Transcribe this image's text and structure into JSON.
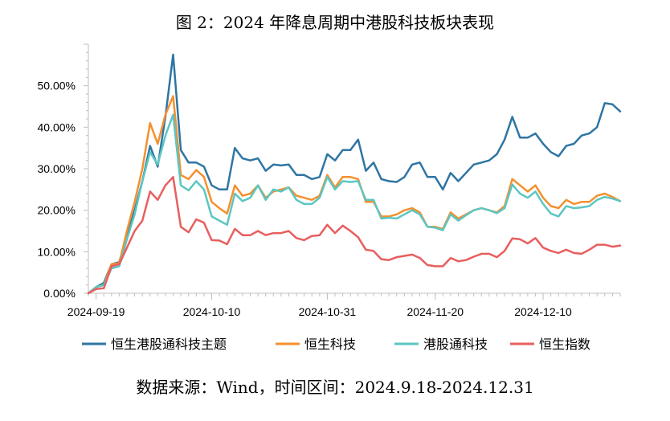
{
  "title": "图 2：2024 年降息周期中港股科技板块表现",
  "source": "数据来源：Wind，时间区间：2024.9.18-2024.12.31",
  "chart_data": {
    "type": "line",
    "x_tick_labels": [
      "2024-09-19",
      "2024-10-10",
      "2024-10-31",
      "2024-11-20",
      "2024-12-10"
    ],
    "x_tick_indices": [
      1,
      16,
      31,
      45,
      59
    ],
    "ylim": [
      0,
      0.6
    ],
    "y_ticks": [
      0,
      0.1,
      0.2,
      0.3,
      0.4,
      0.5
    ],
    "y_tick_labels": [
      "0.00%",
      "10.00%",
      "20.00%",
      "30.00%",
      "40.00%",
      "50.00%"
    ],
    "grid": false,
    "legend_position": "bottom",
    "series": [
      {
        "name": "恒生港股通科技主题",
        "color": "#2f75a3",
        "values": [
          0.0,
          0.015,
          0.025,
          0.07,
          0.075,
          0.14,
          0.2,
          0.27,
          0.355,
          0.305,
          0.425,
          0.575,
          0.345,
          0.315,
          0.315,
          0.305,
          0.26,
          0.25,
          0.25,
          0.35,
          0.325,
          0.32,
          0.325,
          0.295,
          0.31,
          0.308,
          0.31,
          0.285,
          0.285,
          0.275,
          0.28,
          0.335,
          0.32,
          0.345,
          0.345,
          0.37,
          0.295,
          0.315,
          0.275,
          0.27,
          0.268,
          0.28,
          0.31,
          0.315,
          0.28,
          0.28,
          0.25,
          0.29,
          0.27,
          0.29,
          0.31,
          0.315,
          0.32,
          0.335,
          0.37,
          0.425,
          0.375,
          0.375,
          0.385,
          0.36,
          0.34,
          0.33,
          0.355,
          0.36,
          0.38,
          0.385,
          0.4,
          0.458,
          0.455,
          0.438
        ]
      },
      {
        "name": "恒生科技",
        "color": "#f4902e",
        "values": [
          0.0,
          0.015,
          0.02,
          0.07,
          0.072,
          0.15,
          0.22,
          0.3,
          0.41,
          0.36,
          0.43,
          0.475,
          0.285,
          0.275,
          0.297,
          0.28,
          0.22,
          0.205,
          0.192,
          0.26,
          0.235,
          0.24,
          0.26,
          0.23,
          0.245,
          0.25,
          0.255,
          0.235,
          0.23,
          0.225,
          0.235,
          0.285,
          0.255,
          0.28,
          0.28,
          0.275,
          0.22,
          0.22,
          0.185,
          0.185,
          0.19,
          0.2,
          0.205,
          0.195,
          0.16,
          0.16,
          0.155,
          0.195,
          0.18,
          0.19,
          0.2,
          0.205,
          0.2,
          0.195,
          0.21,
          0.275,
          0.26,
          0.245,
          0.26,
          0.23,
          0.21,
          0.205,
          0.225,
          0.215,
          0.22,
          0.22,
          0.235,
          0.24,
          0.232,
          0.222
        ]
      },
      {
        "name": "港股通科技",
        "color": "#5cc6c2",
        "values": [
          0.0,
          0.015,
          0.02,
          0.06,
          0.065,
          0.13,
          0.19,
          0.27,
          0.34,
          0.31,
          0.38,
          0.43,
          0.26,
          0.248,
          0.27,
          0.25,
          0.185,
          0.175,
          0.165,
          0.24,
          0.222,
          0.23,
          0.26,
          0.225,
          0.25,
          0.245,
          0.255,
          0.225,
          0.215,
          0.215,
          0.23,
          0.28,
          0.25,
          0.27,
          0.268,
          0.27,
          0.225,
          0.225,
          0.18,
          0.182,
          0.18,
          0.19,
          0.2,
          0.19,
          0.16,
          0.158,
          0.152,
          0.19,
          0.175,
          0.188,
          0.2,
          0.205,
          0.2,
          0.193,
          0.205,
          0.262,
          0.24,
          0.23,
          0.245,
          0.215,
          0.192,
          0.185,
          0.21,
          0.205,
          0.207,
          0.21,
          0.225,
          0.232,
          0.228,
          0.222
        ]
      },
      {
        "name": "恒生指数",
        "color": "#e85e5e",
        "values": [
          0.0,
          0.01,
          0.012,
          0.065,
          0.07,
          0.11,
          0.15,
          0.175,
          0.245,
          0.225,
          0.26,
          0.28,
          0.16,
          0.147,
          0.178,
          0.17,
          0.128,
          0.127,
          0.118,
          0.155,
          0.14,
          0.14,
          0.15,
          0.14,
          0.145,
          0.145,
          0.15,
          0.133,
          0.128,
          0.138,
          0.14,
          0.165,
          0.145,
          0.163,
          0.15,
          0.135,
          0.105,
          0.102,
          0.082,
          0.08,
          0.087,
          0.09,
          0.093,
          0.085,
          0.068,
          0.065,
          0.065,
          0.085,
          0.077,
          0.08,
          0.088,
          0.095,
          0.095,
          0.087,
          0.102,
          0.132,
          0.13,
          0.12,
          0.133,
          0.11,
          0.102,
          0.097,
          0.105,
          0.097,
          0.095,
          0.105,
          0.117,
          0.117,
          0.112,
          0.115
        ]
      }
    ]
  }
}
